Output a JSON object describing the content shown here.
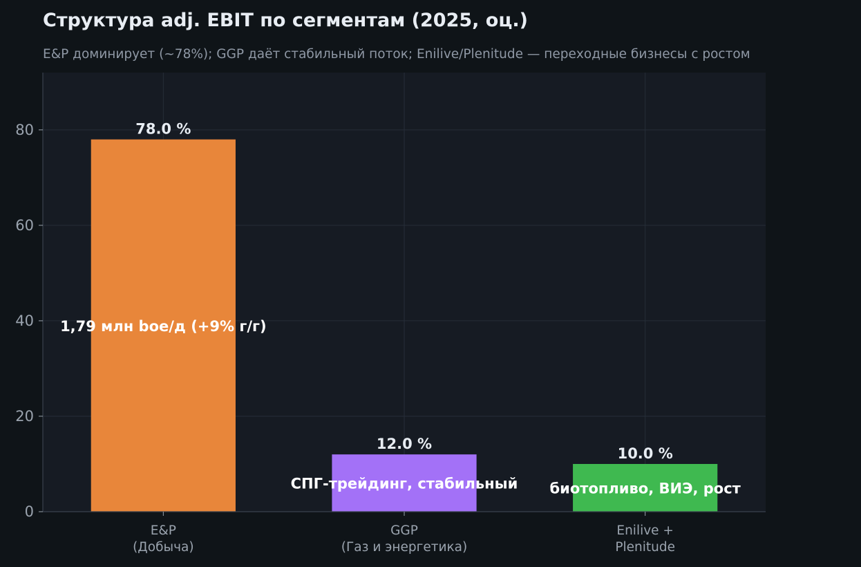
{
  "colors": {
    "background": "#0f1418",
    "plot_background": "#161b23",
    "grid": "#262d38",
    "axis": "#3a424e",
    "title": "#e8edf3",
    "subtitle": "#8f98a5",
    "tick": "#9aa3ae",
    "value_label": "#e8edf3",
    "inner_label": "#ffffff"
  },
  "chart_data": {
    "type": "bar",
    "title": "Структура adj. EBIT по сегментам (2025, оц.)",
    "subtitle": "E&P доминирует (~78%); GGP даёт стабильный поток; Enilive/Plenitude — переходные бизнесы с ростом",
    "xlabel": "",
    "ylabel": "",
    "ylim": [
      0,
      92
    ],
    "yticks": [
      0,
      20,
      40,
      60,
      80
    ],
    "grid": true,
    "categories": [
      [
        "E&P",
        "(Добыча)"
      ],
      [
        "GGP",
        "(Газ и энергетика)"
      ],
      [
        "Enilive +",
        "Plenitude"
      ]
    ],
    "values": [
      78.0,
      12.0,
      10.0
    ],
    "value_labels": [
      "78.0 %",
      "12.0 %",
      "10.0 %"
    ],
    "inner_labels": [
      "1,79 млн boe/д (+9% г/г)",
      "СПГ-трейдинг, стабильный",
      "биотопливо, ВИЭ, рост"
    ],
    "bar_colors": [
      "#e8863a",
      "#a371f7",
      "#3fb950"
    ]
  }
}
